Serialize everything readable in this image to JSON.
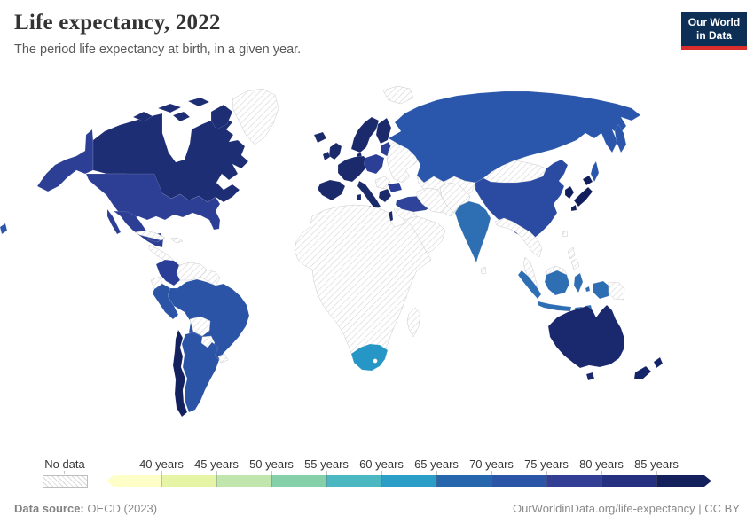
{
  "header": {
    "title": "Life expectancy, 2022",
    "subtitle": "The period life expectancy at birth, in a given year.",
    "logo": {
      "line1": "Our World",
      "line2": "in Data",
      "bg_color": "#0d2e55",
      "accent_color": "#dc2d2d"
    }
  },
  "legend": {
    "no_data_label": "No data",
    "tick_labels": [
      "40 years",
      "45 years",
      "50 years",
      "55 years",
      "60 years",
      "65 years",
      "70 years",
      "75 years",
      "80 years",
      "85 years"
    ],
    "bins": [
      {
        "range": "<40 years",
        "color": "#fefec8"
      },
      {
        "range": "40-45 years",
        "color": "#e6f4a5"
      },
      {
        "range": "45-50 years",
        "color": "#c0e6ae"
      },
      {
        "range": "50-55 years",
        "color": "#85d0a9"
      },
      {
        "range": "55-60 years",
        "color": "#4bb7c1"
      },
      {
        "range": "60-65 years",
        "color": "#2b9ec8"
      },
      {
        "range": "65-70 years",
        "color": "#2566ac"
      },
      {
        "range": "70-75 years",
        "color": "#2b55a7"
      },
      {
        "range": "75-80 years",
        "color": "#333e95"
      },
      {
        "range": "80-85 years",
        "color": "#253080"
      },
      {
        "range": "85+ years",
        "color": "#13205c"
      }
    ]
  },
  "map": {
    "no_data_fill": "hatch",
    "region_colors": {
      "canada": "#1e2e74",
      "alaska": "#2d3f94",
      "usa": "#2d3f94",
      "mexico": "#2d3f94",
      "costarica": "#13215f",
      "centralamerica": "hatch",
      "panama": "hatch",
      "cuba": "hatch",
      "hispaniola": "hatch",
      "greenland": "hatch",
      "colombia": "#2a3d97",
      "venezuela": "hatch",
      "guyanas": "hatch",
      "ecuador": "hatch",
      "peru": "#2b54a7",
      "brazil": "#2b54a7",
      "bolivia": "hatch",
      "paraguay": "hatch",
      "uruguay": "hatch",
      "argentina": "#2b54a7",
      "chile": "#13215f",
      "iceland": "#1b2a6b",
      "uk": "#1b2a6b",
      "ireland": "#1b2a6b",
      "scandinavia": "#1b2a6b",
      "finland": "#1b2a6b",
      "denmark": "#1b2a6b",
      "westeurope": "#1b2a6b",
      "iberia": "#1b2a6b",
      "italy": "#1b2a6b",
      "sardinia": "#1b2a6b",
      "sicily": "#1b2a6b",
      "greece": "#1b2a6b",
      "svalbard": "hatch",
      "baltics": "#2c3f97",
      "centraleu": "#2c3f97",
      "bulgaria": "#2c3f97",
      "balkans": "hatch",
      "ukraine": "hatch",
      "turkey": "#2e4399",
      "israel": "#1b2a6b",
      "russia": "#2a57ab",
      "kamchatka": "#2a57ab",
      "sakhalin": "#2a57ab",
      "chukotka_west": "#2a57ab",
      "kazakhstan": "hatch",
      "stans": "hatch",
      "mideast": "hatch",
      "arabia": "hatch",
      "iran": "hatch",
      "afpak": "hatch",
      "mongolia": "hatch",
      "china": "#2b4aa1",
      "korea": "#111f5c",
      "japan_hokkaido": "#111f5c",
      "japan_honshu": "#111f5c",
      "japan_kyushu": "#111f5c",
      "india": "#2e6fb3",
      "srilanka": "hatch",
      "seasia": "hatch",
      "malaypeninsula": "hatch",
      "taiwan": "hatch",
      "philippines1": "hatch",
      "philippines2": "hatch",
      "sumatra": "#2e6fb3",
      "java": "#2e6fb3",
      "borneo": "#2e6fb3",
      "borneo_north": "hatch",
      "sulawesi": "#2e6fb3",
      "lsunda1": "#2e6fb3",
      "lsunda2": "#2e6fb3",
      "maluku": "#2e6fb3",
      "westpapua": "#2e6fb3",
      "png": "hatch",
      "africa": "hatch",
      "madagascar": "hatch",
      "southafrica": "#2596c5",
      "australia": "#1a296d",
      "tasmania": "#1a296d",
      "nz_north": "#14246b",
      "nz_south": "#14246b"
    }
  },
  "chart_data": {
    "type": "choropleth-map",
    "title": "Life expectancy, 2022",
    "subtitle": "The period life expectancy at birth, in a given year.",
    "unit": "years",
    "legend_bins": [
      "<40",
      "40-45",
      "45-50",
      "50-55",
      "55-60",
      "60-65",
      "65-70",
      "70-75",
      "75-80",
      "80-85",
      "85+"
    ],
    "no_data_label": "No data",
    "entities": [
      {
        "entity": "Canada",
        "bin": "80-85"
      },
      {
        "entity": "United States",
        "bin": "75-80"
      },
      {
        "entity": "Mexico",
        "bin": "75-80"
      },
      {
        "entity": "Costa Rica",
        "bin": "80-85"
      },
      {
        "entity": "Colombia",
        "bin": "75-80"
      },
      {
        "entity": "Peru",
        "bin": "70-75"
      },
      {
        "entity": "Brazil",
        "bin": "70-75"
      },
      {
        "entity": "Argentina",
        "bin": "70-75"
      },
      {
        "entity": "Chile",
        "bin": "80-85"
      },
      {
        "entity": "Iceland",
        "bin": "80-85"
      },
      {
        "entity": "United Kingdom",
        "bin": "80-85"
      },
      {
        "entity": "Ireland",
        "bin": "80-85"
      },
      {
        "entity": "Norway",
        "bin": "80-85"
      },
      {
        "entity": "Sweden",
        "bin": "80-85"
      },
      {
        "entity": "Finland",
        "bin": "80-85"
      },
      {
        "entity": "Denmark",
        "bin": "80-85"
      },
      {
        "entity": "France",
        "bin": "80-85"
      },
      {
        "entity": "Germany",
        "bin": "80-85"
      },
      {
        "entity": "Spain",
        "bin": "80-85"
      },
      {
        "entity": "Portugal",
        "bin": "80-85"
      },
      {
        "entity": "Italy",
        "bin": "80-85"
      },
      {
        "entity": "Greece",
        "bin": "80-85"
      },
      {
        "entity": "Poland",
        "bin": "75-80"
      },
      {
        "entity": "Baltic states",
        "bin": "75-80"
      },
      {
        "entity": "Czechia",
        "bin": "75-80"
      },
      {
        "entity": "Slovakia",
        "bin": "75-80"
      },
      {
        "entity": "Hungary",
        "bin": "75-80"
      },
      {
        "entity": "Bulgaria",
        "bin": "75-80"
      },
      {
        "entity": "Turkey",
        "bin": "75-80"
      },
      {
        "entity": "Israel",
        "bin": "80-85"
      },
      {
        "entity": "Russia",
        "bin": "70-75"
      },
      {
        "entity": "China",
        "bin": "75-80"
      },
      {
        "entity": "India",
        "bin": "65-70"
      },
      {
        "entity": "Indonesia",
        "bin": "65-70"
      },
      {
        "entity": "Japan",
        "bin": "80-85"
      },
      {
        "entity": "South Korea",
        "bin": "80-85"
      },
      {
        "entity": "Australia",
        "bin": "80-85"
      },
      {
        "entity": "New Zealand",
        "bin": "80-85"
      },
      {
        "entity": "South Africa",
        "bin": "60-65"
      }
    ]
  },
  "footer": {
    "source_label": "Data source:",
    "source_value": " OECD (2023)",
    "credit": "OurWorldinData.org/life-expectancy | CC BY"
  }
}
